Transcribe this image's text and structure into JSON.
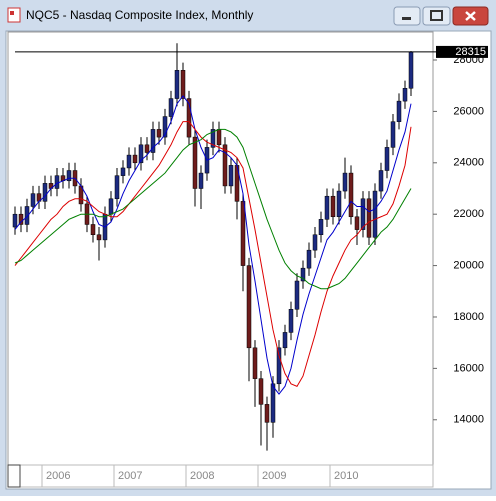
{
  "window": {
    "title": "NQC5 - Nasdaq Composite Index, Monthly"
  },
  "chart_data": {
    "type": "candlestick",
    "categories": [
      null,
      null,
      null,
      null,
      null,
      "2006",
      null,
      null,
      null,
      null,
      null,
      null,
      null,
      null,
      null,
      null,
      null,
      "2007",
      null,
      null,
      null,
      null,
      null,
      null,
      null,
      null,
      null,
      null,
      null,
      "2008",
      null,
      null,
      null,
      null,
      null,
      null,
      null,
      null,
      null,
      null,
      null,
      "2009",
      null,
      null,
      null,
      null,
      null,
      null,
      null,
      null,
      null,
      null,
      null,
      "2010",
      null,
      null,
      null,
      null,
      null,
      null,
      null,
      null,
      null,
      null,
      null,
      null,
      null
    ],
    "open": [
      21500,
      22000,
      21600,
      22300,
      22800,
      22500,
      23200,
      23000,
      23500,
      23300,
      23700,
      23100,
      22400,
      21600,
      21200,
      21000,
      22000,
      22600,
      23500,
      23800,
      24300,
      24000,
      24700,
      24400,
      25300,
      25000,
      25800,
      26500,
      27600,
      26500,
      25000,
      23000,
      23600,
      24600,
      25300,
      24700,
      23100,
      23900,
      22500,
      20000,
      16800,
      15600,
      14600,
      13900,
      15400,
      16800,
      17400,
      18300,
      19400,
      19900,
      20600,
      21200,
      21800,
      22700,
      21900,
      22900,
      23600,
      21900,
      21400,
      22600,
      21100,
      22900,
      23700,
      24600,
      25600,
      26400,
      26900
    ],
    "high": [
      22300,
      22300,
      22600,
      23100,
      23100,
      23500,
      23500,
      23800,
      23800,
      24000,
      24000,
      23400,
      22700,
      21900,
      21500,
      22300,
      22900,
      23800,
      24100,
      24600,
      24600,
      25000,
      25000,
      25600,
      25600,
      26100,
      26800,
      28650,
      27900,
      26800,
      25300,
      23900,
      24900,
      25600,
      25600,
      25000,
      24200,
      24200,
      22800,
      20300,
      17100,
      15900,
      14900,
      15700,
      17100,
      17700,
      18600,
      19700,
      20200,
      20900,
      21500,
      22100,
      23000,
      23000,
      23200,
      24200,
      23900,
      22200,
      22900,
      22900,
      23200,
      24000,
      24900,
      25900,
      26700,
      27200,
      28350
    ],
    "low": [
      21200,
      21300,
      21300,
      22000,
      22200,
      22200,
      22700,
      22700,
      23000,
      23000,
      22800,
      22100,
      21300,
      20900,
      20200,
      20700,
      21700,
      22300,
      23200,
      23500,
      23700,
      23700,
      24100,
      24100,
      24700,
      24700,
      25500,
      26200,
      26200,
      24700,
      22300,
      22200,
      23300,
      24300,
      24400,
      22800,
      22800,
      21800,
      19000,
      15500,
      14500,
      13000,
      12800,
      13300,
      15100,
      16500,
      17100,
      18000,
      19100,
      19600,
      20300,
      20900,
      21500,
      21600,
      21600,
      22600,
      21600,
      20800,
      21100,
      20800,
      20800,
      22600,
      23400,
      24300,
      25300,
      26100,
      26600
    ],
    "close": [
      22000,
      21600,
      22300,
      22800,
      22500,
      23200,
      23000,
      23500,
      23300,
      23700,
      23100,
      22400,
      21600,
      21200,
      21000,
      22000,
      22600,
      23500,
      23800,
      24300,
      24000,
      24700,
      24400,
      25300,
      25000,
      25800,
      26500,
      27600,
      26500,
      25000,
      23000,
      23600,
      24600,
      25300,
      24700,
      23100,
      23900,
      22500,
      20000,
      16800,
      15600,
      14600,
      13900,
      15400,
      16800,
      17400,
      18300,
      19400,
      19900,
      20600,
      21200,
      21800,
      22700,
      21900,
      22900,
      23600,
      21900,
      21400,
      22600,
      21100,
      22900,
      23700,
      24600,
      25600,
      26400,
      26900,
      28315
    ],
    "up_color": "#1c2a80",
    "down_color": "#6e1c1c",
    "series": [
      {
        "color": "#0000cc",
        "values": [
          21400,
          21700,
          21900,
          22200,
          22500,
          22700,
          23000,
          23200,
          23300,
          23400,
          23400,
          23100,
          22700,
          22100,
          21600,
          21500,
          21700,
          22200,
          22800,
          23300,
          23700,
          24100,
          24300,
          24600,
          24800,
          25100,
          25600,
          26300,
          26600,
          26300,
          25300,
          24600,
          24100,
          24200,
          24500,
          24400,
          24200,
          23900,
          22800,
          20800,
          19400,
          17900,
          16400,
          15300,
          15000,
          15300,
          16000,
          17100,
          18100,
          18900,
          19600,
          20300,
          21000,
          21300,
          21700,
          22100,
          22500,
          22300,
          22300,
          22100,
          22200,
          22500,
          22900,
          23700,
          24500,
          25200,
          26300
        ]
      },
      {
        "color": "#dd0000",
        "values": [
          20000,
          20300,
          20600,
          20900,
          21200,
          21500,
          21800,
          22000,
          22300,
          22500,
          22600,
          22600,
          22500,
          22300,
          22100,
          22000,
          21900,
          21900,
          22100,
          22400,
          22700,
          23000,
          23300,
          23600,
          23900,
          24300,
          24700,
          25200,
          25600,
          25600,
          25300,
          25000,
          24800,
          24700,
          24600,
          24500,
          24400,
          24200,
          23800,
          22600,
          21400,
          20100,
          18800,
          17500,
          16500,
          15800,
          15400,
          15300,
          15700,
          16500,
          17300,
          18200,
          19000,
          19600,
          20100,
          20600,
          21000,
          21200,
          21500,
          21700,
          21800,
          21900,
          22000,
          22400,
          23100,
          23900,
          25400
        ]
      },
      {
        "color": "#008000",
        "values": [
          20100,
          20200,
          20400,
          20600,
          20800,
          21000,
          21200,
          21400,
          21600,
          21800,
          21900,
          22000,
          22000,
          22000,
          21900,
          21900,
          22000,
          22100,
          22200,
          22400,
          22600,
          22800,
          23000,
          23200,
          23400,
          23600,
          23900,
          24200,
          24500,
          24700,
          24800,
          24900,
          25100,
          25200,
          25300,
          25300,
          25200,
          25000,
          24600,
          23900,
          23200,
          22500,
          21800,
          21200,
          20600,
          20100,
          19800,
          19600,
          19500,
          19300,
          19200,
          19100,
          19100,
          19200,
          19300,
          19500,
          19800,
          20100,
          20400,
          20700,
          21000,
          21300,
          21500,
          21800,
          22200,
          22600,
          23000
        ]
      }
    ],
    "last_value": 28315,
    "ylim": [
      12240,
      29090
    ],
    "yticks": [
      14000,
      16000,
      18000,
      20000,
      22000,
      24000,
      26000,
      28000
    ]
  }
}
